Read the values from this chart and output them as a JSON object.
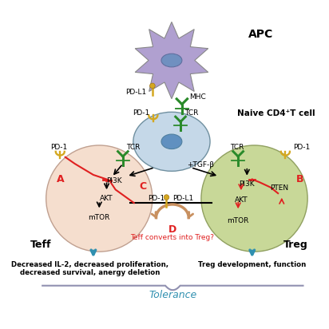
{
  "title": "",
  "background_color": "#ffffff",
  "apc_color": "#b0a0d0",
  "apc_nucleus_color": "#7090c0",
  "naive_cell_color": "#c5d8e8",
  "naive_nucleus_color": "#6090c0",
  "teff_color": "#f5dece",
  "treg_color": "#c8d898",
  "tcr_color": "#2a8a2a",
  "pd1_color": "#d4a820",
  "pdl1_color": "#d4a820",
  "arrow_color": "#000000",
  "red_color": "#e02020",
  "blue_arrow_color": "#3090b0",
  "tan_arrow_color": "#c89060",
  "tolerance_brace_color": "#9090b0",
  "tolerance_text_color": "#3090b0",
  "labels": {
    "APC": "APC",
    "naive": "Naive CD4⁺T cell",
    "teff": "Teff",
    "treg": "Treg",
    "pd1_label1": "PD-1",
    "pdl1_label1": "PD-L1",
    "mhc_label": "MHC",
    "tcr_label1": "TCR",
    "pd1_label2": "PD-1",
    "tcr_label2": "TCR",
    "tgfb": "+TGF-β",
    "tcr_teff": "TCR",
    "pd1_teff": "PD-1",
    "pi3k_teff": "PI3K",
    "akt_teff": "AKT",
    "mtor_teff": "mTOR",
    "label_a": "A",
    "label_b": "B",
    "label_c": "C",
    "label_d": "D",
    "pd1_center": "PD-1",
    "pdl1_center": "PD-L1",
    "pi3k_treg": "PI3K",
    "akt_treg": "AKT",
    "mtor_treg": "mTOR",
    "pten_treg": "PTEN",
    "tcr_treg": "TCR",
    "pd1_treg": "PD-1",
    "teff_converts": "Teff converts into Treg?",
    "teff_desc1": "Decreased IL-2, decreased proliferation,",
    "teff_desc2": "decreased survival, anergy deletion",
    "treg_desc": "Treg development, function",
    "tolerance": "Tolerance"
  }
}
